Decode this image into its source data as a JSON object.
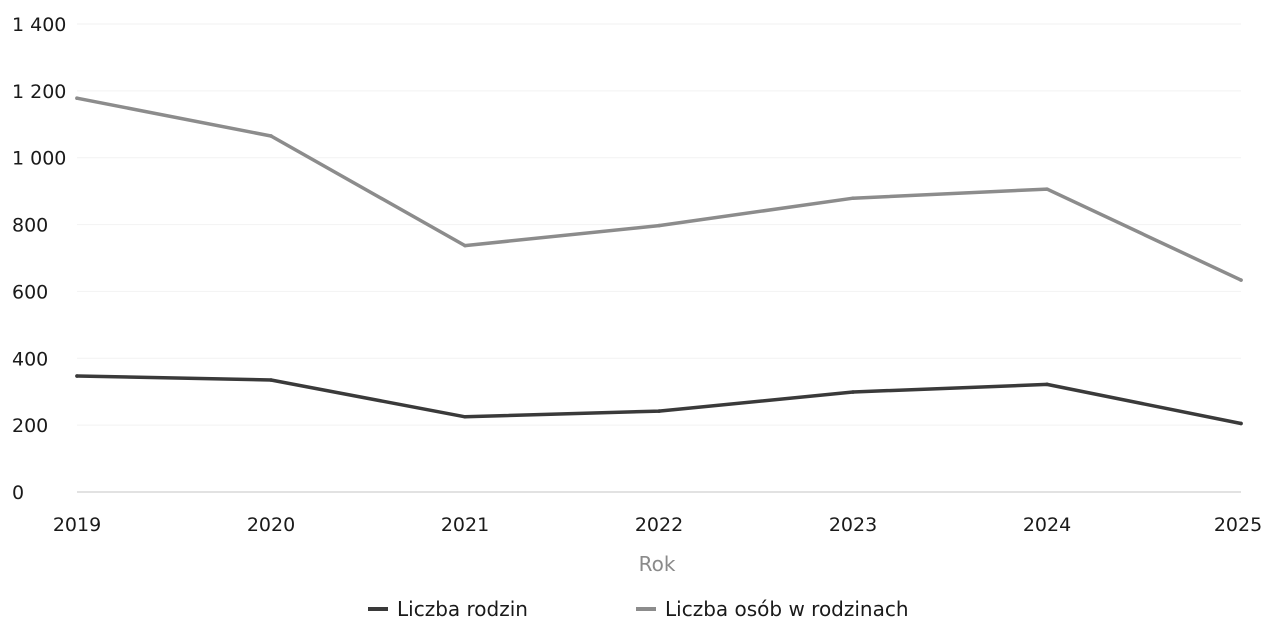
{
  "chart_data": {
    "type": "line",
    "title": "",
    "xlabel": "Rok",
    "ylabel": "",
    "categories": [
      "2019",
      "2020",
      "2021",
      "2022",
      "2023",
      "2024",
      "2025"
    ],
    "yticks": [
      "0",
      "200",
      "400",
      "600",
      "800",
      "1 000",
      "1 200",
      "1 400"
    ],
    "ylim": [
      0,
      1400
    ],
    "grid": true,
    "legend_position": "bottom",
    "series": [
      {
        "name": "Liczba rodzin",
        "color": "#3a3a3a",
        "values": [
          347,
          335,
          225,
          242,
          299,
          322,
          205
        ]
      },
      {
        "name": "Liczba osób w rodzinach",
        "color": "#8c8c8c",
        "values": [
          1178,
          1065,
          737,
          797,
          879,
          906,
          634
        ]
      }
    ]
  }
}
